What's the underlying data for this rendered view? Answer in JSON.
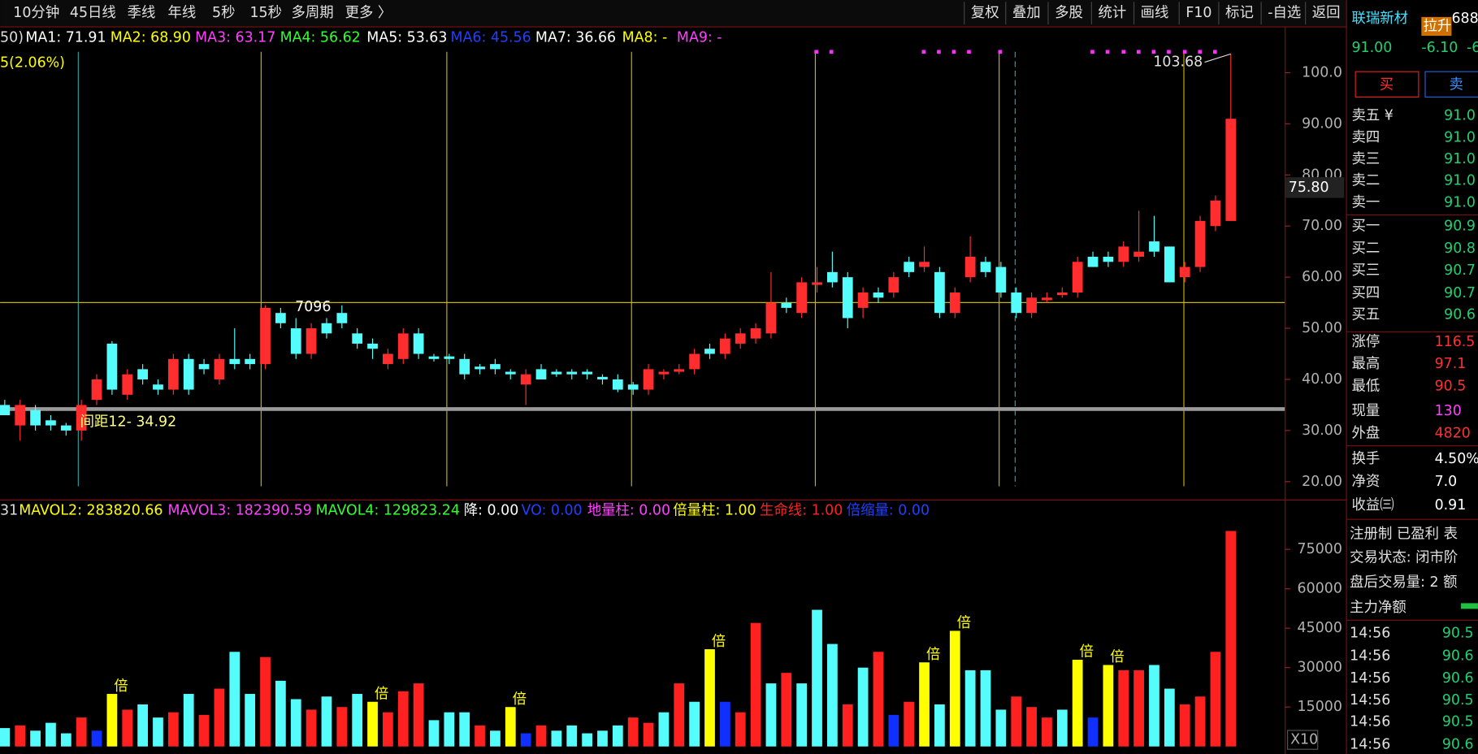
{
  "toolbar": {
    "left": [
      "10分钟",
      "45日线",
      "季线",
      "年线",
      "5秒",
      "15秒",
      "多周期",
      "更多 〉"
    ],
    "right": [
      "复权",
      "叠加",
      "多股",
      "统计",
      "画线",
      "F10",
      "标记",
      "-自选",
      "返回"
    ]
  },
  "ma_legend": [
    {
      "text": "50)",
      "color": "#dddddd"
    },
    {
      "text": "MA1: 71.91",
      "color": "#ffffff"
    },
    {
      "text": "MA2: 68.90",
      "color": "#ffff00"
    },
    {
      "text": "MA3: 63.17",
      "color": "#ff40ff"
    },
    {
      "text": "MA4: 56.62",
      "color": "#30ff30"
    },
    {
      "text": "MA5: 53.63",
      "color": "#ffffff"
    },
    {
      "text": "MA6: 45.56",
      "color": "#2040ff"
    },
    {
      "text": "MA7: 36.66",
      "color": "#ffffff"
    },
    {
      "text": "MA8: -",
      "color": "#ffff00"
    },
    {
      "text": "MA9: -",
      "color": "#ff40ff"
    }
  ],
  "pct_label": "5(2.06%)",
  "vol_legend": [
    {
      "text": "31",
      "color": "#dddddd"
    },
    {
      "text": "MAVOL2: 283820.66",
      "color": "#ffff00"
    },
    {
      "text": "MAVOL3: 182390.59",
      "color": "#ff40ff"
    },
    {
      "text": "MAVOL4: 129823.24",
      "color": "#30ff30"
    },
    {
      "text": "降: 0.00",
      "color": "#ffffff"
    },
    {
      "text": "VO: 0.00",
      "color": "#2040ff"
    },
    {
      "text": "地量柱: 0.00",
      "color": "#ff40ff"
    },
    {
      "text": "倍量柱: 1.00",
      "color": "#ffff00"
    },
    {
      "text": "生命线: 1.00",
      "color": "#ff2020"
    },
    {
      "text": "倍缩量: 0.00",
      "color": "#2040ff"
    }
  ],
  "chart_data": [
    {
      "type": "candlestick",
      "up_color": "#ff2d2d",
      "down_color": "#54fcfc",
      "ylim": [
        16.5,
        108.7
      ],
      "yticks": [
        {
          "value": 20,
          "label": "20.00"
        },
        {
          "value": 30,
          "label": "30.00"
        },
        {
          "value": 40,
          "label": "40.00"
        },
        {
          "value": 50,
          "label": "50.00"
        },
        {
          "value": 60,
          "label": "60.00"
        },
        {
          "value": 70,
          "label": "70.00"
        },
        {
          "value": 80,
          "label": "80.00"
        },
        {
          "value": 90,
          "label": "90.00"
        },
        {
          "value": 100,
          "label": "100.0"
        }
      ],
      "open": [
        35,
        31,
        34,
        32,
        31,
        30,
        36,
        47,
        37,
        42,
        39,
        38,
        44,
        43,
        40,
        44,
        44,
        43,
        53,
        50,
        45,
        51,
        53,
        49,
        47,
        43,
        44,
        49,
        44.5,
        44.5,
        44,
        42.5,
        43,
        41.5,
        39,
        42,
        41.5,
        41.5,
        41.5,
        40.5,
        40,
        39,
        38,
        41,
        41.5,
        42,
        46,
        45,
        47,
        48,
        49,
        55,
        53,
        58.5,
        61,
        60,
        54,
        57,
        57,
        63,
        62,
        61,
        53,
        60,
        63,
        62,
        57,
        53,
        55.5,
        56.5,
        57,
        64,
        64,
        63,
        64,
        67,
        66,
        60,
        62,
        70,
        71
      ],
      "high": [
        36,
        36,
        35,
        33,
        31.5,
        36,
        41,
        47.5,
        42,
        43,
        40,
        45,
        45,
        44,
        45,
        50,
        45,
        54.5,
        54,
        52,
        51,
        52,
        54.5,
        50,
        48,
        46,
        50,
        50,
        45,
        45,
        45,
        43,
        44,
        42,
        42,
        43,
        42,
        42,
        42,
        41,
        41,
        39.5,
        43,
        42,
        43,
        46,
        47,
        49,
        50,
        51,
        61,
        56,
        60,
        62,
        65,
        61,
        58,
        58,
        61,
        64,
        66,
        62,
        58,
        68,
        64,
        63,
        58,
        57,
        57,
        58,
        64,
        65,
        65,
        67,
        73,
        72,
        66,
        63,
        72,
        76,
        103.68
      ],
      "low": [
        33,
        28,
        30,
        30,
        29,
        28,
        35,
        37,
        36,
        39,
        37,
        37,
        37,
        41,
        39,
        42,
        42,
        42,
        50,
        44,
        44,
        48,
        50,
        46,
        44,
        42,
        43,
        44,
        43.5,
        43,
        40,
        41,
        41,
        40,
        35,
        40,
        40.5,
        40,
        40,
        39,
        37.5,
        37,
        37,
        40,
        41,
        41,
        44,
        44,
        46,
        47,
        48,
        53,
        52,
        57,
        58,
        50,
        52,
        55,
        56,
        60,
        61,
        52,
        52,
        59,
        60,
        56,
        52,
        52,
        55,
        56,
        56,
        62,
        62,
        62,
        63,
        64,
        59,
        59,
        61,
        69,
        71
      ],
      "close": [
        33,
        35,
        31,
        31,
        30,
        35,
        40,
        38,
        41,
        40,
        38,
        44,
        38,
        42,
        44,
        43,
        43,
        54,
        51,
        45,
        50,
        49,
        51,
        47,
        46,
        45,
        49,
        45,
        44,
        44,
        41,
        42,
        42,
        41,
        41,
        40,
        41,
        41,
        41,
        40,
        38,
        38,
        42,
        41.5,
        42,
        45,
        45,
        48,
        49,
        50,
        55,
        54,
        59,
        59,
        59,
        52,
        57,
        56,
        60,
        61,
        63,
        53,
        57,
        64,
        61,
        57,
        53,
        56,
        56,
        57,
        63,
        62,
        63,
        66,
        65,
        65,
        59,
        62,
        71,
        75,
        91
      ],
      "annotations": [
        "7096",
        "间距12- 34.92",
        "75.80"
      ]
    },
    {
      "type": "bar",
      "ylim": [
        0,
        85000
      ],
      "yticks": [
        15000,
        30000,
        45000,
        60000,
        75000
      ],
      "scale_label": "X10",
      "marker": "倍",
      "marker_color": "#ffff00",
      "values": [
        7000,
        8000,
        6000,
        9000,
        5000,
        11000,
        6000,
        20000,
        14000,
        16000,
        11000,
        13000,
        20000,
        12000,
        22000,
        36000,
        20000,
        34000,
        25000,
        18000,
        14000,
        19000,
        15000,
        20000,
        17000,
        13000,
        21000,
        24000,
        10000,
        13000,
        13000,
        8000,
        6000,
        15000,
        5000,
        8000,
        6000,
        8000,
        5000,
        6000,
        8000,
        11000,
        9000,
        13000,
        24000,
        17000,
        37000,
        17000,
        13000,
        47000,
        24000,
        28000,
        24000,
        52000,
        39000,
        16000,
        30000,
        36000,
        12000,
        17000,
        32000,
        16000,
        44000,
        29000,
        29000,
        14000,
        19000,
        15000,
        11000,
        14000,
        33000,
        11000,
        31000,
        29000,
        29000,
        31000,
        22000,
        16000,
        19000,
        36000,
        82000
      ],
      "colors": [
        "#54fcfc",
        "#ff2020",
        "#54fcfc",
        "#54fcfc",
        "#54fcfc",
        "#ff2020",
        "#1030ff",
        "#ffff00",
        "#ff2020",
        "#54fcfc",
        "#54fcfc",
        "#ff2020",
        "#54fcfc",
        "#ff2020",
        "#ff2020",
        "#54fcfc",
        "#54fcfc",
        "#ff2020",
        "#54fcfc",
        "#54fcfc",
        "#ff2020",
        "#54fcfc",
        "#ff2020",
        "#54fcfc",
        "#ffff00",
        "#ff2020",
        "#ff2020",
        "#ff2020",
        "#54fcfc",
        "#54fcfc",
        "#54fcfc",
        "#ff2020",
        "#54fcfc",
        "#ffff00",
        "#1030ff",
        "#ff2020",
        "#54fcfc",
        "#54fcfc",
        "#54fcfc",
        "#54fcfc",
        "#54fcfc",
        "#ff2020",
        "#ff2020",
        "#54fcfc",
        "#ff2020",
        "#54fcfc",
        "#ffff00",
        "#1030ff",
        "#ff2020",
        "#ff2020",
        "#54fcfc",
        "#ff2020",
        "#54fcfc",
        "#54fcfc",
        "#54fcfc",
        "#ff2020",
        "#54fcfc",
        "#ff2020",
        "#1030ff",
        "#ff2020",
        "#ffff00",
        "#54fcfc",
        "#ffff00",
        "#54fcfc",
        "#54fcfc",
        "#54fcfc",
        "#ff2020",
        "#ff2020",
        "#ff2020",
        "#54fcfc",
        "#ffff00",
        "#1030ff",
        "#ffff00",
        "#ff2020",
        "#ff2020",
        "#54fcfc",
        "#54fcfc",
        "#ff2020",
        "#ff2020",
        "#ff2020",
        "#ff2020"
      ]
    }
  ],
  "quote": {
    "name": "联瑞新材",
    "tag": "拉升",
    "code": "688",
    "price": "91.00",
    "change": "-6.10",
    "pct": "-6",
    "buy": "买",
    "sell": "卖",
    "book": [
      {
        "label": "卖五 ¥",
        "value": "91.0"
      },
      {
        "label": "卖四",
        "value": "91.0"
      },
      {
        "label": "卖三",
        "value": "91.0"
      },
      {
        "label": "卖二",
        "value": "91.0"
      },
      {
        "label": "卖一",
        "value": "91.0"
      },
      {
        "label": "买一",
        "value": "90.9"
      },
      {
        "label": "买二",
        "value": "90.8"
      },
      {
        "label": "买三",
        "value": "90.7"
      },
      {
        "label": "买四",
        "value": "90.7"
      },
      {
        "label": "买五",
        "value": "90.6"
      }
    ],
    "stats": [
      {
        "label": "涨停",
        "value": "116.5",
        "color": "#ff3030"
      },
      {
        "label": "最高",
        "value": "97.1",
        "color": "#ff3030"
      },
      {
        "label": "最低",
        "value": "90.5",
        "color": "#ff3030"
      },
      {
        "label": "现量",
        "value": "130",
        "color": "#ff40ff"
      },
      {
        "label": "外盘",
        "value": "4820",
        "color": "#ff3030"
      },
      {
        "label": "换手",
        "value": "4.50%",
        "color": "#ffffff"
      },
      {
        "label": "净资",
        "value": "7.0",
        "color": "#ffffff"
      },
      {
        "label": "收益㈢",
        "value": "0.91",
        "color": "#ffffff"
      }
    ],
    "info": [
      "注册制 已盈利 表",
      "交易状态: 闭市阶",
      "盘后交易量: 2 额"
    ],
    "flow": "主力净额",
    "ticks": [
      {
        "time": "14:56",
        "value": "90.5"
      },
      {
        "time": "14:56",
        "value": "90.6"
      },
      {
        "time": "14:56",
        "value": "90.6"
      },
      {
        "time": "14:56",
        "value": "90.5"
      },
      {
        "time": "14:56",
        "value": "90.5"
      },
      {
        "time": "14:56",
        "value": "90.6"
      }
    ]
  }
}
